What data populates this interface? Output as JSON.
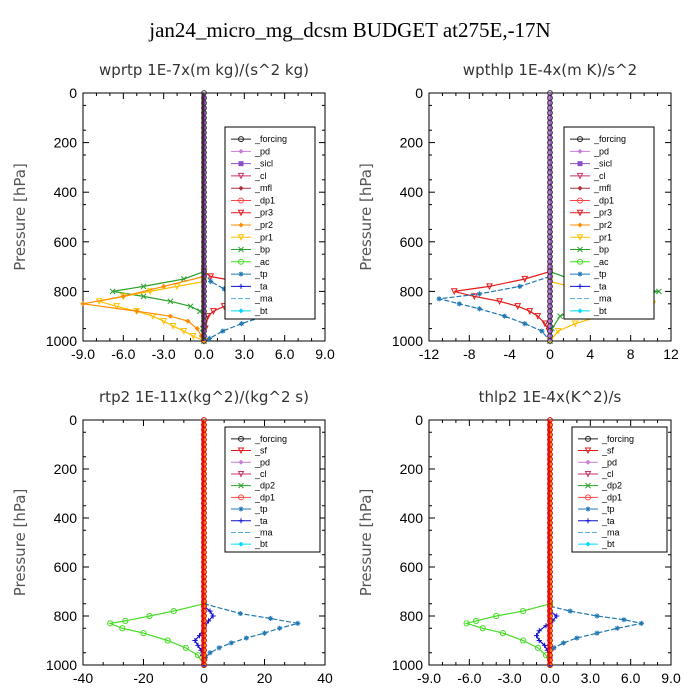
{
  "figure_title": "jan24_micro_mg_dcsm  BUDGET at275E,-17N",
  "chart_data": [
    {
      "type": "line",
      "title": "wprtp   1E-7x(m kg)/(s^2 kg)",
      "ylabel": "Pressure [hPa]",
      "xlim": [
        -9,
        9
      ],
      "ylim": [
        1000,
        0
      ],
      "xticks": [
        "-9.0",
        "-6.0",
        "-3.0",
        "0.0",
        "3.0",
        "6.0",
        "9.0"
      ],
      "xtick_values": [
        -9,
        -6,
        -3,
        0,
        3,
        6,
        9
      ],
      "yticks": [
        "0",
        "200",
        "400",
        "600",
        "800",
        "1000"
      ],
      "legend": [
        "_forcing",
        "_pd",
        "_sicl",
        "_cl",
        "_mfl",
        "_dp1",
        "_pr3",
        "_pr2",
        "_pr1",
        "_bp",
        "_ac",
        "_tp",
        "_ta",
        "_ma",
        "_bt"
      ],
      "series": [
        {
          "name": "_pr3",
          "color": "#e31a1c",
          "p": [
            720,
            740,
            760,
            780,
            800,
            820,
            840,
            860,
            880,
            900,
            950,
            1000
          ],
          "x": [
            0,
            0.5,
            2.5,
            4.5,
            6.0,
            5.0,
            3.0,
            1.5,
            0.7,
            0.3,
            0.1,
            0
          ]
        },
        {
          "name": "_bp",
          "color": "#2ca02c",
          "p": [
            720,
            750,
            780,
            800,
            820,
            840,
            860,
            880,
            900,
            950,
            1000
          ],
          "x": [
            0,
            -1.5,
            -4.5,
            -6.8,
            -4.5,
            -2.5,
            -1.0,
            -0.3,
            0,
            -0.1,
            0
          ]
        },
        {
          "name": "_tp",
          "color": "#1f78b4",
          "p": [
            720,
            760,
            790,
            810,
            830,
            850,
            870,
            900,
            930,
            960,
            990,
            1000
          ],
          "x": [
            0,
            0.5,
            1.5,
            4.0,
            6.5,
            8.0,
            6.5,
            4.5,
            2.8,
            1.4,
            0.4,
            0
          ]
        },
        {
          "name": "_pr1",
          "color": "#ffc000",
          "p": [
            760,
            780,
            800,
            820,
            840,
            860,
            880,
            900,
            920,
            940,
            960,
            980,
            1000
          ],
          "x": [
            0,
            -2.0,
            -4.0,
            -6.0,
            -7.8,
            -6.5,
            -5.0,
            -3.8,
            -3.0,
            -2.3,
            -1.5,
            -0.8,
            0
          ]
        },
        {
          "name": "_pr2",
          "color": "#ff8c00",
          "p": [
            740,
            780,
            820,
            850,
            880,
            900,
            920,
            950,
            980,
            1000
          ],
          "x": [
            0,
            -3.0,
            -6.0,
            -9.0,
            -5.0,
            -2.5,
            -1.2,
            -0.5,
            -0.2,
            0
          ]
        }
      ]
    },
    {
      "type": "line",
      "title": "wpthlp   1E-4x(m K)/s^2",
      "ylabel": "Pressure [hPa]",
      "xlim": [
        -12,
        12
      ],
      "ylim": [
        1000,
        0
      ],
      "xticks": [
        "-12",
        "-8",
        "-4",
        "0",
        "4",
        "8",
        "12"
      ],
      "xtick_values": [
        -12,
        -8,
        -4,
        0,
        4,
        8,
        12
      ],
      "yticks": [
        "0",
        "200",
        "400",
        "600",
        "800",
        "1000"
      ],
      "legend": [
        "_forcing",
        "_pd",
        "_sicl",
        "_cl",
        "_mfl",
        "_dp1",
        "_pr3",
        "_pr2",
        "_pr1",
        "_bp",
        "_ac",
        "_tp",
        "_ta",
        "_ma",
        "_bt"
      ],
      "series": [
        {
          "name": "_pr3",
          "color": "#e31a1c",
          "p": [
            720,
            750,
            780,
            800,
            820,
            840,
            860,
            880,
            900,
            930,
            960,
            1000
          ],
          "x": [
            0,
            -2.5,
            -6.0,
            -9.5,
            -7.5,
            -5.0,
            -3.2,
            -2.0,
            -1.2,
            -0.5,
            -0.1,
            0
          ]
        },
        {
          "name": "_bp",
          "color": "#2ca02c",
          "p": [
            720,
            750,
            780,
            800,
            820,
            840,
            860,
            880,
            900,
            950,
            1000
          ],
          "x": [
            0,
            2.0,
            6.0,
            10.8,
            8.0,
            5.5,
            3.5,
            2.0,
            1.0,
            0.2,
            0
          ]
        },
        {
          "name": "_tp",
          "color": "#1f78b4",
          "p": [
            740,
            780,
            810,
            830,
            850,
            870,
            900,
            930,
            960,
            1000
          ],
          "x": [
            0,
            -3.0,
            -7.0,
            -11.0,
            -9.0,
            -7.0,
            -4.5,
            -2.5,
            -0.8,
            0
          ]
        },
        {
          "name": "_pr1",
          "color": "#ffc000",
          "p": [
            760,
            790,
            810,
            830,
            850,
            870,
            900,
            930,
            960,
            1000
          ],
          "x": [
            0,
            3.0,
            6.5,
            9.5,
            10.2,
            8.0,
            5.0,
            2.5,
            0.8,
            0
          ]
        }
      ]
    },
    {
      "type": "line",
      "title": "rtp2   1E-11x(kg^2)/(kg^2 s)",
      "ylabel": "Pressure [hPa]",
      "xlim": [
        -40,
        40
      ],
      "ylim": [
        1000,
        0
      ],
      "xticks": [
        "-40",
        "-20",
        "0",
        "20",
        "40"
      ],
      "xtick_values": [
        -40,
        -20,
        0,
        20,
        40
      ],
      "yticks": [
        "0",
        "200",
        "400",
        "600",
        "800",
        "1000"
      ],
      "legend": [
        "_forcing",
        "_sf",
        "_pd",
        "_cl",
        "_dp2",
        "_dp1",
        "_tp",
        "_ta",
        "_ma",
        "_bt"
      ],
      "series": [
        {
          "name": "_dp1",
          "color": "#44dd22",
          "p": [
            750,
            780,
            800,
            820,
            830,
            850,
            870,
            900,
            930,
            960,
            1000
          ],
          "x": [
            0,
            -10,
            -18,
            -26,
            -31,
            -27,
            -20,
            -12,
            -6,
            -2,
            0
          ]
        },
        {
          "name": "_tp",
          "color": "#1f78b4",
          "p": [
            750,
            790,
            810,
            830,
            850,
            870,
            890,
            910,
            930,
            950,
            970,
            1000
          ],
          "x": [
            0,
            12,
            22,
            31,
            25,
            20,
            14,
            9,
            5,
            2,
            0.5,
            0
          ]
        },
        {
          "name": "_ta",
          "color": "#1010d0",
          "p": [
            760,
            780,
            800,
            820,
            850,
            880,
            900,
            920,
            940,
            960,
            980,
            1000
          ],
          "x": [
            0,
            2,
            3,
            1.5,
            0,
            -1.5,
            -3,
            -2,
            -1,
            -0.5,
            0,
            0
          ]
        }
      ]
    },
    {
      "type": "line",
      "title": "thlp2   1E-4x(K^2)/s",
      "ylabel": "Pressure [hPa]",
      "xlim": [
        -9,
        9
      ],
      "ylim": [
        1000,
        0
      ],
      "xticks": [
        "-9.0",
        "-6.0",
        "-3.0",
        "0.0",
        "3.0",
        "6.0",
        "9.0"
      ],
      "xtick_values": [
        -9,
        -6,
        -3,
        0,
        3,
        6,
        9
      ],
      "yticks": [
        "0",
        "200",
        "400",
        "600",
        "800",
        "1000"
      ],
      "legend": [
        "_forcing",
        "_sf",
        "_pd",
        "_cl",
        "_dp2",
        "_dp1",
        "_tp",
        "_ta",
        "_ma",
        "_bt"
      ],
      "series": [
        {
          "name": "_dp1",
          "color": "#44dd22",
          "p": [
            750,
            780,
            800,
            820,
            830,
            850,
            870,
            900,
            930,
            960,
            1000
          ],
          "x": [
            0,
            -2.0,
            -4.0,
            -5.5,
            -6.2,
            -5.0,
            -3.5,
            -2.0,
            -0.9,
            -0.3,
            0
          ]
        },
        {
          "name": "_tp",
          "color": "#1f78b4",
          "p": [
            760,
            780,
            800,
            815,
            830,
            850,
            870,
            890,
            910,
            930,
            960,
            1000
          ],
          "x": [
            0,
            1.5,
            3.5,
            5.5,
            6.8,
            5.0,
            3.5,
            2.0,
            1.0,
            0.3,
            0,
            0
          ]
        },
        {
          "name": "_ta",
          "color": "#1010d0",
          "p": [
            780,
            800,
            820,
            840,
            860,
            880,
            900,
            920,
            940,
            970,
            1000
          ],
          "x": [
            0,
            0.5,
            0.2,
            -0.3,
            -0.8,
            -1.0,
            -0.8,
            -0.4,
            -0.2,
            0,
            0
          ]
        }
      ]
    }
  ],
  "legend_styles": {
    "_forcing": {
      "color": "#222222",
      "marker": "circle"
    },
    "_pd": {
      "color": "#c77bd8",
      "marker": "diamond"
    },
    "_sicl": {
      "color": "#8b4fc7",
      "marker": "square"
    },
    "_cl": {
      "color": "#cc3366",
      "marker": "triangle"
    },
    "_mfl": {
      "color": "#aa3344",
      "marker": "diamond"
    },
    "_dp1": {
      "color": "#ff4444",
      "marker": "circle"
    },
    "_pr3": {
      "color": "#e31a1c",
      "marker": "triangle"
    },
    "_pr2": {
      "color": "#ff8c00",
      "marker": "diamond"
    },
    "_pr1": {
      "color": "#ffc000",
      "marker": "triangle"
    },
    "_bp": {
      "color": "#2ca02c",
      "marker": "x"
    },
    "_ac": {
      "color": "#44dd22",
      "marker": "circle"
    },
    "_tp": {
      "color": "#1f78b4",
      "marker": "star"
    },
    "_ta": {
      "color": "#1010d0",
      "marker": "plus"
    },
    "_ma": {
      "color": "#55aadd",
      "marker": "none"
    },
    "_bt": {
      "color": "#00d8ff",
      "marker": "diamond"
    },
    "_sf": {
      "color": "#e31a1c",
      "marker": "triangle"
    },
    "_dp2": {
      "color": "#2ca02c",
      "marker": "x"
    }
  }
}
